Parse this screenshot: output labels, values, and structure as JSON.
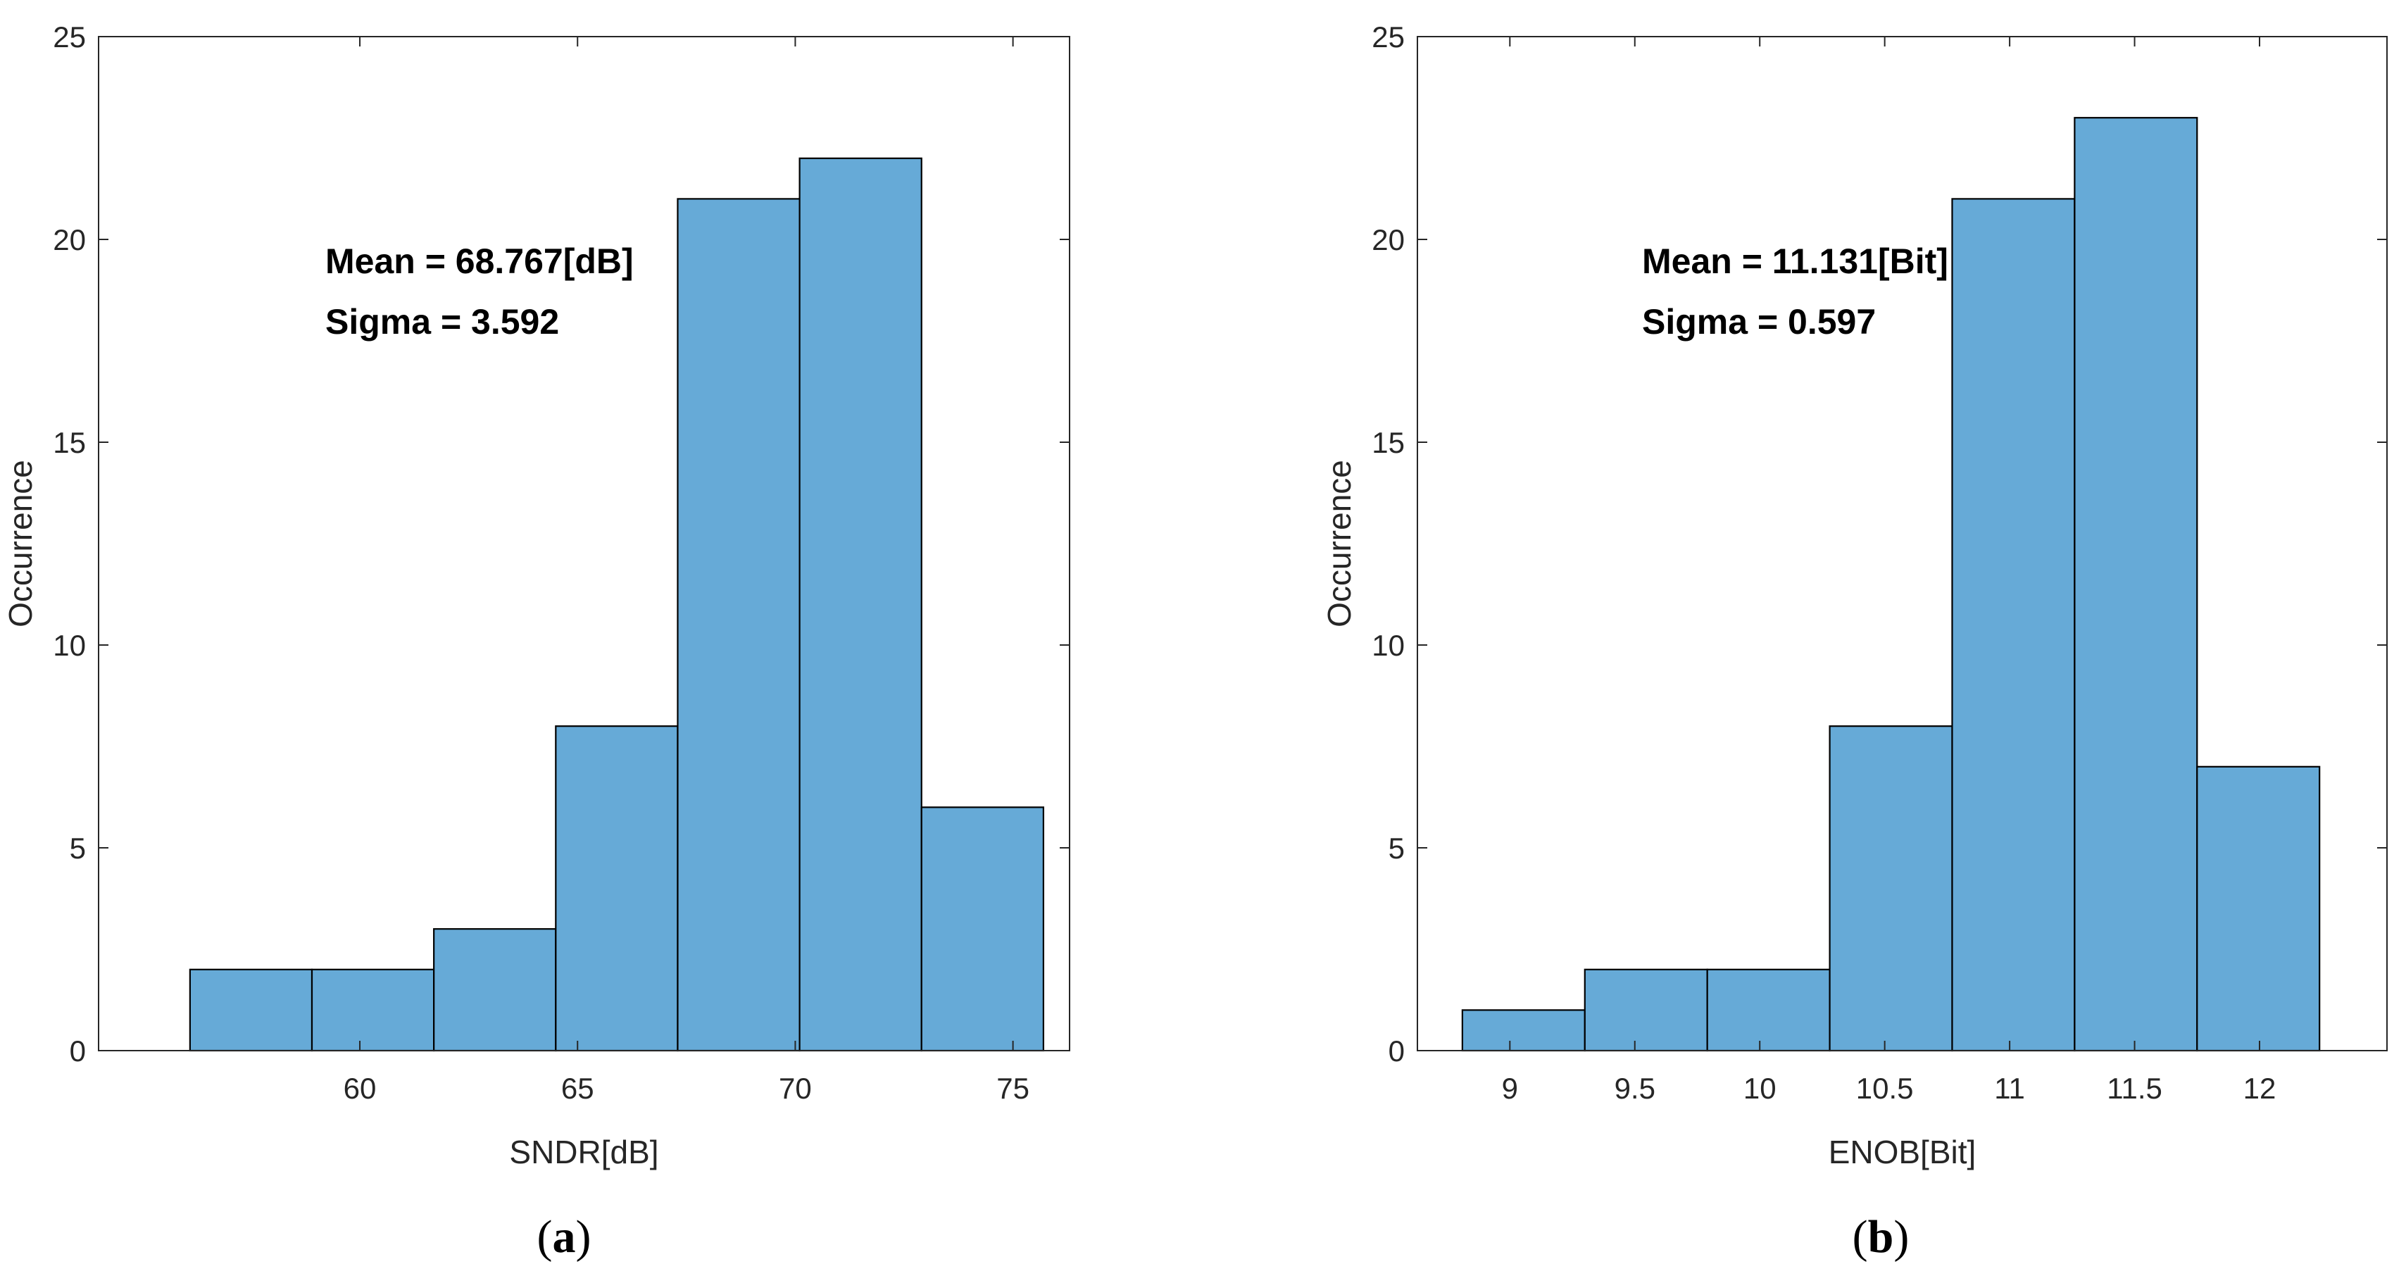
{
  "chart_data": [
    {
      "type": "bar",
      "title": "",
      "caption_letter": "a",
      "xlabel": "SNDR[dB]",
      "ylabel": "Occurrence",
      "xlim": [
        54,
        76.3
      ],
      "ylim": [
        0,
        25
      ],
      "xticks": [
        60,
        65,
        70,
        75
      ],
      "yticks": [
        0,
        5,
        10,
        15,
        20,
        25
      ],
      "bin_edges": [
        56.1,
        58.9,
        61.7,
        64.5,
        67.3,
        70.1,
        72.9,
        75.7
      ],
      "values": [
        2,
        2,
        3,
        8,
        21,
        22,
        6
      ],
      "annotations": [
        "Mean = 68.767[dB]",
        "Sigma = 3.592"
      ],
      "bar_color": "#66aad7"
    },
    {
      "type": "bar",
      "title": "",
      "caption_letter": "b",
      "xlabel": "ENOB[Bit]",
      "ylabel": "Occurrence",
      "xlim": [
        8.63,
        12.51
      ],
      "ylim": [
        0,
        25
      ],
      "xticks": [
        9,
        9.5,
        10,
        10.5,
        11,
        11.5,
        12
      ],
      "yticks": [
        0,
        5,
        10,
        15,
        20,
        25
      ],
      "bin_edges": [
        8.81,
        9.3,
        9.79,
        10.28,
        10.77,
        11.26,
        11.75,
        12.24
      ],
      "values": [
        1,
        2,
        2,
        8,
        21,
        23,
        7
      ],
      "annotations": [
        "Mean = 11.131[Bit]",
        "Sigma = 0.597"
      ],
      "bar_color": "#66aad7"
    }
  ]
}
